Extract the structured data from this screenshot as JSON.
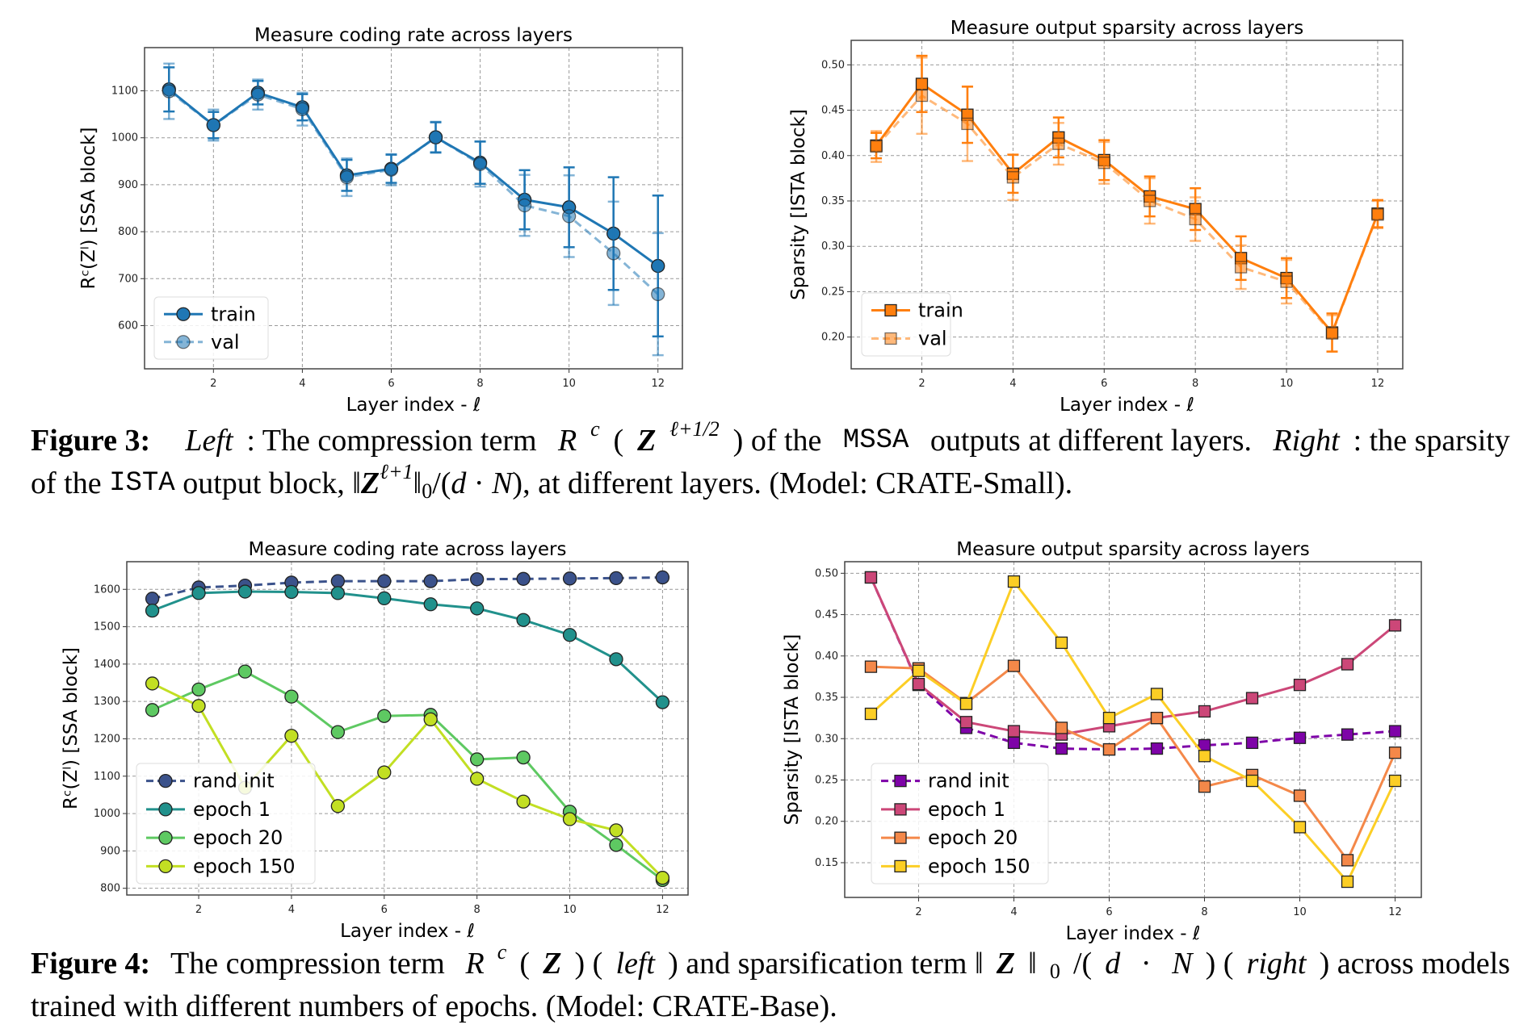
{
  "figures": [
    {
      "caption_lines": [
        [
          [
            "bold",
            "Figure 3:"
          ],
          [
            "text",
            " "
          ],
          [
            "italic",
            "Left"
          ],
          [
            "text",
            ": The compression term "
          ],
          [
            "math",
            "R"
          ],
          [
            "sup",
            "c"
          ],
          [
            "text",
            "("
          ],
          [
            "mathbold",
            "Z"
          ],
          [
            "sup",
            "ℓ+1/2"
          ],
          [
            "text",
            ") of the "
          ],
          [
            "mono",
            "MSSA"
          ],
          [
            "text",
            " outputs at different layers. "
          ],
          [
            "italic",
            "Right"
          ],
          [
            "text",
            ": the sparsity"
          ]
        ],
        [
          [
            "text",
            "of the "
          ],
          [
            "mono",
            "ISTA"
          ],
          [
            "text",
            " output block, ‖"
          ],
          [
            "mathbold",
            "Z"
          ],
          [
            "sup",
            "ℓ+1"
          ],
          [
            "text",
            "‖"
          ],
          [
            "sub",
            "0"
          ],
          [
            "text",
            "/("
          ],
          [
            "math",
            "d"
          ],
          [
            "text",
            " · "
          ],
          [
            "math",
            "N"
          ],
          [
            "text",
            "), at different layers. (Model: "
          ],
          [
            "smallcaps",
            "CRATE"
          ],
          [
            "text",
            "-Small)."
          ]
        ]
      ]
    },
    {
      "caption_lines": [
        [
          [
            "bold",
            "Figure 4:"
          ],
          [
            "text",
            " The compression term "
          ],
          [
            "math",
            "R"
          ],
          [
            "sup",
            "c"
          ],
          [
            "text",
            "("
          ],
          [
            "mathbold",
            "Z"
          ],
          [
            "text",
            ") ("
          ],
          [
            "italic",
            "left"
          ],
          [
            "text",
            ") and sparsification term ‖"
          ],
          [
            "mathbold",
            "Z"
          ],
          [
            "text",
            "‖"
          ],
          [
            "sub",
            "0"
          ],
          [
            "text",
            "/("
          ],
          [
            "math",
            "d"
          ],
          [
            "text",
            " · "
          ],
          [
            "math",
            "N"
          ],
          [
            "text",
            ") ("
          ],
          [
            "italic",
            "right"
          ],
          [
            "text",
            ") across models"
          ]
        ],
        [
          [
            "text",
            "trained with different numbers of epochs. (Model: "
          ],
          [
            "smallcaps",
            "CRATE"
          ],
          [
            "text",
            "-Base)."
          ]
        ]
      ]
    }
  ],
  "chart_data": [
    {
      "type": "line",
      "title": "Measure coding rate across layers",
      "xlabel": "Layer index - ℓ",
      "ylabel": "Rᶜ(Zˡ) [SSA block]",
      "marker": "circle",
      "xlim": [
        0.45,
        12.55
      ],
      "ylim": [
        508,
        1192
      ],
      "xticks": [
        2,
        4,
        6,
        8,
        10,
        12
      ],
      "yticks": [
        600,
        700,
        800,
        900,
        1000,
        1100
      ],
      "grid": true,
      "legend": "bottom-left",
      "x": [
        1,
        2,
        3,
        4,
        5,
        6,
        7,
        8,
        9,
        10,
        11,
        12
      ],
      "series": [
        {
          "name": "train",
          "color": "#1f77b4",
          "dashed": false,
          "alpha": 1,
          "values": [
            1103,
            1027,
            1096,
            1065,
            920,
            934,
            1001,
            947,
            868,
            852,
            796,
            727
          ],
          "errors": [
            47,
            28,
            25,
            28,
            33,
            30,
            32,
            45,
            63,
            85,
            120,
            150
          ]
        },
        {
          "name": "val",
          "color": "#1f77b4",
          "dashed": true,
          "alpha": 0.55,
          "values": [
            1099,
            1027,
            1092,
            1061,
            916,
            932,
            1001,
            944,
            856,
            833,
            754,
            667
          ],
          "errors": [
            59,
            33,
            32,
            35,
            40,
            33,
            33,
            48,
            65,
            87,
            110,
            130
          ]
        }
      ]
    },
    {
      "type": "line",
      "title": "Measure output sparsity across layers",
      "xlabel": "Layer index - ℓ",
      "ylabel": "Sparsity [ISTA block]",
      "marker": "square",
      "xlim": [
        0.45,
        12.55
      ],
      "ylim": [
        0.165,
        0.527
      ],
      "xticks": [
        2,
        4,
        6,
        8,
        10,
        12
      ],
      "yticks": [
        0.2,
        0.25,
        0.3,
        0.35,
        0.4,
        0.45,
        0.5
      ],
      "grid": true,
      "legend": "bottom-left",
      "x": [
        1,
        2,
        3,
        4,
        5,
        6,
        7,
        8,
        9,
        10,
        11,
        12
      ],
      "series": [
        {
          "name": "train",
          "color": "#ff7f0e",
          "dashed": false,
          "alpha": 1,
          "values": [
            0.411,
            0.479,
            0.445,
            0.38,
            0.42,
            0.395,
            0.355,
            0.341,
            0.287,
            0.265,
            0.205,
            0.336
          ],
          "errors": [
            0.014,
            0.031,
            0.031,
            0.021,
            0.022,
            0.022,
            0.022,
            0.023,
            0.024,
            0.022,
            0.021,
            0.015
          ]
        },
        {
          "name": "val",
          "color": "#ff7f0e",
          "dashed": true,
          "alpha": 0.55,
          "values": [
            0.41,
            0.466,
            0.435,
            0.376,
            0.413,
            0.392,
            0.35,
            0.33,
            0.277,
            0.261,
            0.204,
            0.335
          ],
          "errors": [
            0.017,
            0.042,
            0.041,
            0.025,
            0.023,
            0.023,
            0.025,
            0.024,
            0.024,
            0.024,
            0.02,
            0.015
          ]
        }
      ]
    },
    {
      "type": "line",
      "title": "Measure coding rate across layers",
      "xlabel": "Layer index - ℓ",
      "ylabel": "Rᶜ(Zˡ) [SSA block]",
      "marker": "circle",
      "xlim": [
        0.45,
        12.55
      ],
      "ylim": [
        782,
        1674
      ],
      "xticks": [
        2,
        4,
        6,
        8,
        10,
        12
      ],
      "yticks": [
        800,
        900,
        1000,
        1100,
        1200,
        1300,
        1400,
        1500,
        1600
      ],
      "grid": true,
      "legend": "bottom-left",
      "x": [
        1,
        2,
        3,
        4,
        5,
        6,
        7,
        8,
        9,
        10,
        11,
        12
      ],
      "series": [
        {
          "name": "rand init",
          "color": "#3b528b",
          "dashed": true,
          "alpha": 1,
          "values": [
            1575,
            1605,
            1610,
            1618,
            1622,
            1622,
            1622,
            1627,
            1628,
            1629,
            1630,
            1632
          ]
        },
        {
          "name": "epoch 1",
          "color": "#21918c",
          "dashed": false,
          "alpha": 1,
          "values": [
            1543,
            1590,
            1594,
            1593,
            1590,
            1576,
            1560,
            1549,
            1518,
            1478,
            1413,
            1298
          ]
        },
        {
          "name": "epoch 20",
          "color": "#5ec962",
          "dashed": false,
          "alpha": 1,
          "values": [
            1277,
            1332,
            1380,
            1313,
            1218,
            1261,
            1264,
            1145,
            1150,
            1005,
            916,
            822
          ]
        },
        {
          "name": "epoch 150",
          "color": "#c2df23",
          "dashed": false,
          "alpha": 1,
          "values": [
            1348,
            1288,
            1069,
            1208,
            1020,
            1110,
            1252,
            1093,
            1032,
            985,
            955,
            828
          ]
        }
      ]
    },
    {
      "type": "line",
      "title": "Measure output sparsity across layers",
      "xlabel": "Layer index - ℓ",
      "ylabel": "Sparsity [ISTA block]",
      "marker": "square",
      "xlim": [
        0.45,
        12.55
      ],
      "ylim": [
        0.108,
        0.514
      ],
      "xticks": [
        2,
        4,
        6,
        8,
        10,
        12
      ],
      "yticks": [
        0.15,
        0.2,
        0.25,
        0.3,
        0.35,
        0.4,
        0.45,
        0.5
      ],
      "grid": true,
      "legend": "bottom-left",
      "x": [
        1,
        2,
        3,
        4,
        5,
        6,
        7,
        8,
        9,
        10,
        11,
        12
      ],
      "series": [
        {
          "name": "rand init",
          "color": "#7e03a8",
          "dashed": true,
          "alpha": 1,
          "values": [
            0.495,
            0.365,
            0.313,
            0.295,
            0.288,
            0.287,
            0.288,
            0.292,
            0.295,
            0.301,
            0.305,
            0.309
          ]
        },
        {
          "name": "epoch 1",
          "color": "#cc4778",
          "dashed": false,
          "alpha": 1,
          "values": [
            0.495,
            0.366,
            0.32,
            0.309,
            0.305,
            0.315,
            0.325,
            0.333,
            0.349,
            0.365,
            0.39,
            0.437
          ]
        },
        {
          "name": "epoch 20",
          "color": "#f48849",
          "dashed": false,
          "alpha": 1,
          "values": [
            0.387,
            0.385,
            0.343,
            0.388,
            0.313,
            0.287,
            0.325,
            0.242,
            0.256,
            0.231,
            0.153,
            0.283
          ]
        },
        {
          "name": "epoch 150",
          "color": "#fcce25",
          "dashed": false,
          "alpha": 1,
          "values": [
            0.33,
            0.382,
            0.342,
            0.49,
            0.416,
            0.325,
            0.354,
            0.279,
            0.249,
            0.193,
            0.127,
            0.249
          ]
        }
      ]
    }
  ]
}
